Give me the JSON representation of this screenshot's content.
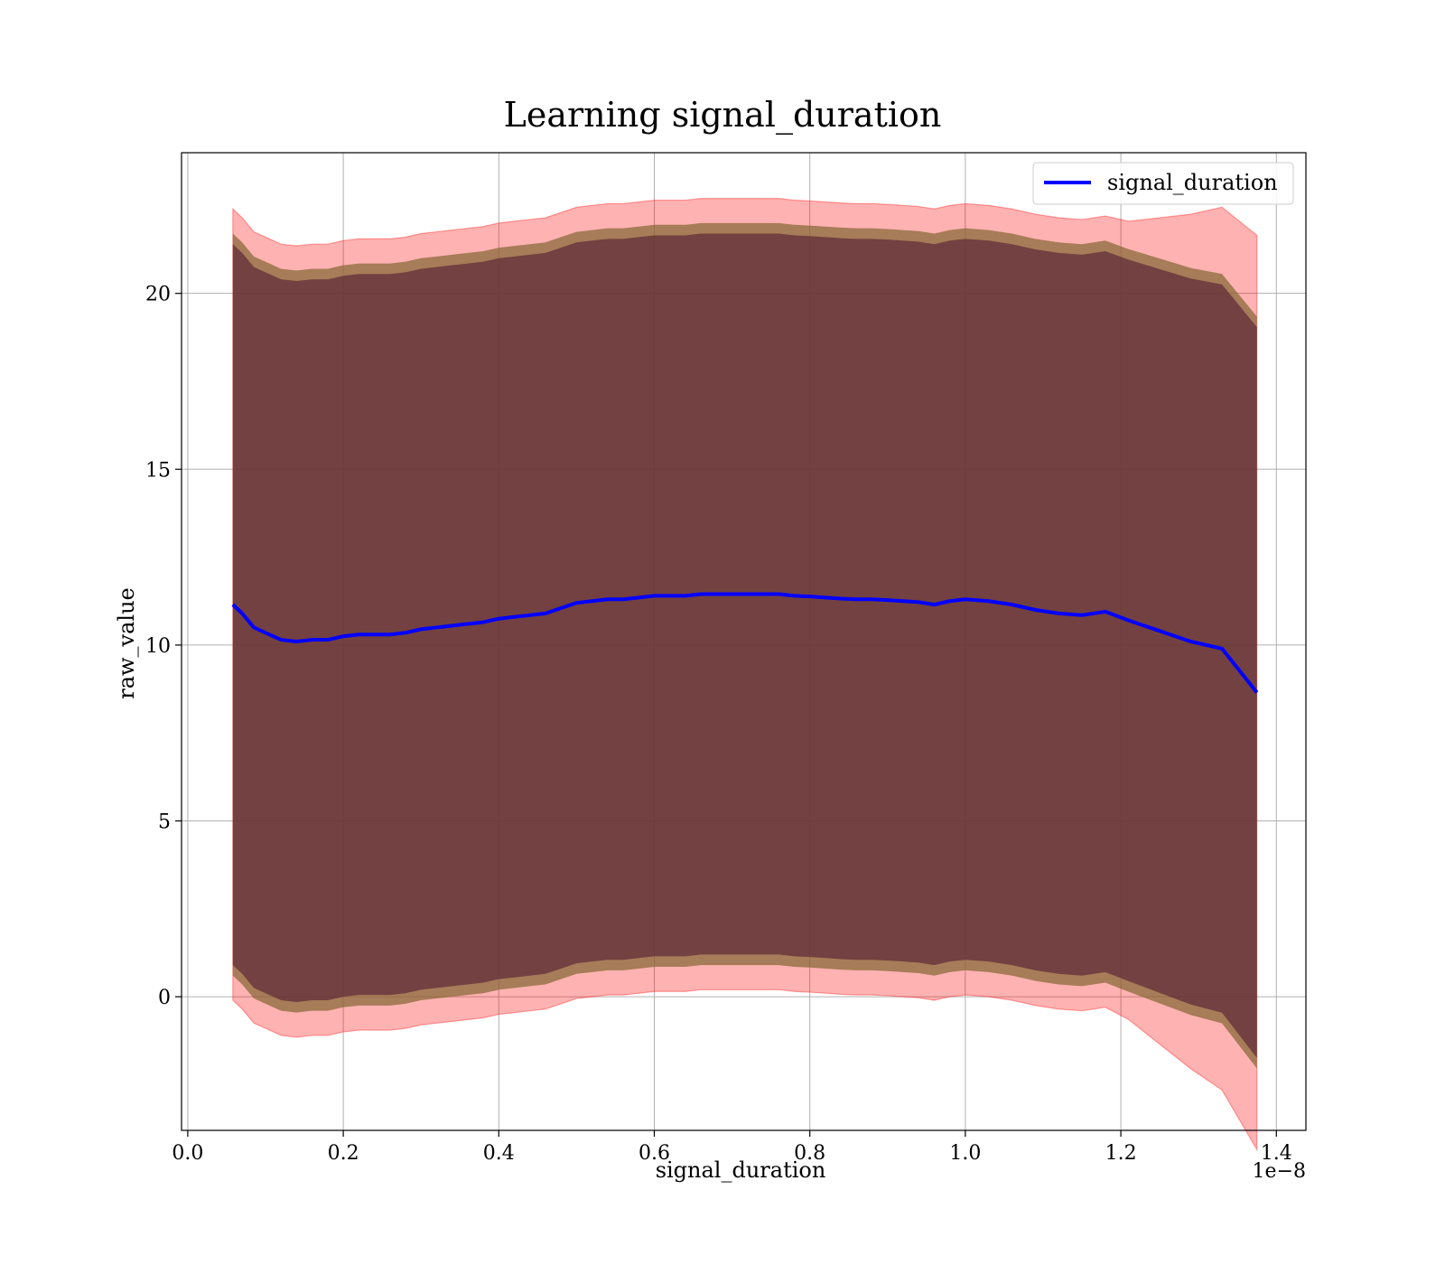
{
  "chart_data": {
    "type": "line",
    "title": "Learning signal_duration",
    "xlabel": "signal_duration",
    "ylabel": "raw_value",
    "x_offset_text": "1e−8",
    "xlim": [
      -0.008,
      1.438
    ],
    "ylim": [
      -3.8,
      24.0
    ],
    "x_ticks": [
      0.0,
      0.2,
      0.4,
      0.6,
      0.8,
      1.0,
      1.2,
      1.4
    ],
    "x_tick_labels": [
      "0.0",
      "0.2",
      "0.4",
      "0.6",
      "0.8",
      "1.0",
      "1.2",
      "1.4"
    ],
    "y_ticks": [
      0,
      5,
      10,
      15,
      20
    ],
    "y_tick_labels": [
      "0",
      "5",
      "10",
      "15",
      "20"
    ],
    "grid": true,
    "legend_position": "top-right",
    "colors": {
      "line": "#0000ff",
      "outer_band": "#ff0000",
      "inner_band": "#582235",
      "inner_band_edge": "#8a6a3a",
      "grid": "#b0b0b0"
    },
    "series": [
      {
        "name": "signal_duration",
        "x": [
          0.058,
          0.07,
          0.085,
          0.1,
          0.12,
          0.14,
          0.16,
          0.18,
          0.2,
          0.22,
          0.24,
          0.26,
          0.28,
          0.3,
          0.32,
          0.34,
          0.36,
          0.38,
          0.4,
          0.42,
          0.44,
          0.46,
          0.48,
          0.5,
          0.52,
          0.54,
          0.56,
          0.58,
          0.6,
          0.62,
          0.64,
          0.66,
          0.68,
          0.7,
          0.72,
          0.74,
          0.76,
          0.78,
          0.8,
          0.82,
          0.84,
          0.86,
          0.88,
          0.9,
          0.92,
          0.94,
          0.96,
          0.98,
          1.0,
          1.03,
          1.06,
          1.09,
          1.12,
          1.15,
          1.18,
          1.21,
          1.25,
          1.29,
          1.33,
          1.375
        ],
        "values": [
          11.15,
          10.9,
          10.5,
          10.35,
          10.15,
          10.1,
          10.15,
          10.15,
          10.25,
          10.3,
          10.3,
          10.3,
          10.35,
          10.45,
          10.5,
          10.55,
          10.6,
          10.65,
          10.75,
          10.8,
          10.85,
          10.9,
          11.05,
          11.2,
          11.25,
          11.3,
          11.3,
          11.35,
          11.4,
          11.4,
          11.4,
          11.45,
          11.45,
          11.45,
          11.45,
          11.45,
          11.45,
          11.4,
          11.38,
          11.35,
          11.32,
          11.3,
          11.3,
          11.28,
          11.25,
          11.22,
          11.15,
          11.25,
          11.3,
          11.25,
          11.15,
          11.0,
          10.9,
          10.85,
          10.95,
          10.7,
          10.4,
          10.1,
          9.9,
          8.65
        ]
      }
    ]
  }
}
